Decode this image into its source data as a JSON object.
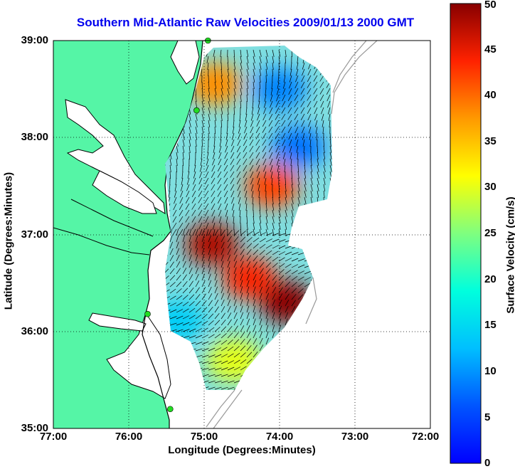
{
  "title": "Southern Mid-Atlantic Raw Velocities 2009/01/13 2000 GMT",
  "xlabel": "Longitude (Degrees:Minutes)",
  "ylabel": "Latitude (Degrees:Minutes)",
  "colorbar": {
    "label": "Surface Velocity (cm/s)",
    "ticks": [
      "0",
      "5",
      "10",
      "15",
      "20",
      "25",
      "30",
      "35",
      "40",
      "45",
      "50"
    ],
    "range": [
      0,
      50
    ],
    "colormap": "jet"
  },
  "x_ticks": [
    "77:00",
    "76:00",
    "75:00",
    "74:00",
    "73:00",
    "72:00"
  ],
  "y_ticks": [
    "35:00",
    "36:00",
    "37:00",
    "38:00",
    "39:00"
  ],
  "colors": {
    "land": "#55f5a6",
    "water": "#ffffff",
    "coastline": "#000000",
    "bathymetry": "#999999",
    "stations": "#22dd22",
    "title": "#0000ee",
    "grid": "#000000"
  },
  "stations": [
    {
      "lon": -74.95,
      "lat": 39.0
    },
    {
      "lon": -75.1,
      "lat": 38.28
    },
    {
      "lon": -75.75,
      "lat": 36.18
    },
    {
      "lon": -75.45,
      "lat": 35.2
    }
  ],
  "velocity_hotspots": [
    {
      "lon": -74.85,
      "lat": 38.55,
      "speed": 38
    },
    {
      "lon": -74.1,
      "lat": 37.5,
      "speed": 42
    },
    {
      "lon": -74.9,
      "lat": 36.9,
      "speed": 48
    },
    {
      "lon": -73.9,
      "lat": 36.3,
      "speed": 50
    },
    {
      "lon": -74.4,
      "lat": 36.55,
      "speed": 44
    },
    {
      "lon": -74.0,
      "lat": 38.5,
      "speed": 9
    },
    {
      "lon": -73.75,
      "lat": 37.9,
      "speed": 8
    },
    {
      "lon": -75.35,
      "lat": 36.1,
      "speed": 14
    },
    {
      "lon": -74.6,
      "lat": 35.7,
      "speed": 30
    }
  ]
}
